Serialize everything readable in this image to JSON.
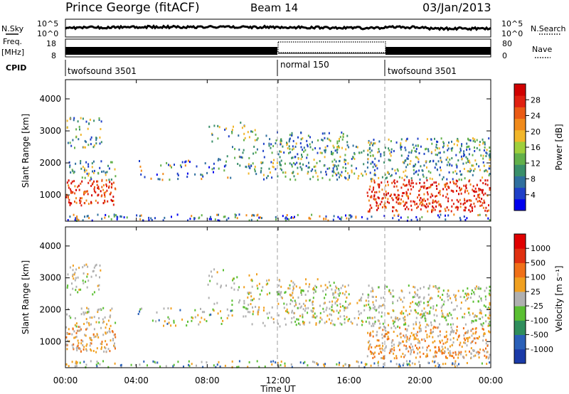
{
  "header": {
    "title": "Prince George (fitACF)",
    "beam": "Beam 14",
    "date": "03/Jan/2013"
  },
  "noise_panel": {
    "left_label": "N.Sky",
    "right_label": "N.Search",
    "left_ticks": [
      "10^5",
      "10^0"
    ],
    "right_ticks": [
      "10^5",
      "10^0"
    ]
  },
  "freq_panel": {
    "label_top": "Freq.",
    "label_unit": "[MHz]",
    "left_ticks": [
      "18",
      "8"
    ],
    "right_label": "Nave",
    "right_ticks": [
      "80",
      "0"
    ]
  },
  "cpid": {
    "label": "CPID",
    "segments": [
      {
        "text": "twofsound 3501",
        "start_hour": 0
      },
      {
        "text": "normal 150",
        "start_hour": 12
      },
      {
        "text": "twofsound 3501",
        "start_hour": 18
      }
    ]
  },
  "x_axis": {
    "label": "Time UT",
    "ticks": [
      "00:00",
      "04:00",
      "08:00",
      "12:00",
      "16:00",
      "20:00",
      "00:00"
    ],
    "range_hours": [
      0,
      24
    ]
  },
  "chart_data": [
    {
      "type": "heatmap",
      "title": "",
      "ylabel": "Slant Range [km]",
      "ylim": [
        180,
        4600
      ],
      "y_ticks": [
        "1000",
        "2000",
        "3000",
        "4000"
      ],
      "colorbar_label": "Power [dB]",
      "colorbar_ticks": [
        "28",
        "24",
        "20",
        "16",
        "12",
        "8",
        "4"
      ],
      "colorbar_colors": [
        "#0000ee",
        "#1f40c8",
        "#2f6f9e",
        "#3a8f6a",
        "#62b04a",
        "#9fcf3c",
        "#f1b62a",
        "#f08a1a",
        "#ea5a14",
        "#e02010",
        "#d00000"
      ]
    },
    {
      "type": "heatmap",
      "title": "",
      "ylabel": "Slant Range [km]",
      "ylim": [
        180,
        4600
      ],
      "y_ticks": [
        "1000",
        "2000",
        "3000",
        "4000"
      ],
      "colorbar_label": "Velocity [m s⁻¹]",
      "colorbar_ticks": [
        "1000",
        "500",
        "100",
        "25",
        "-25",
        "-100",
        "-500",
        "-1000"
      ],
      "colorbar_colors": [
        "#1a3aa8",
        "#2a60b8",
        "#2f8e5c",
        "#5abf32",
        "#b0b0b0",
        "#f0a020",
        "#f07018",
        "#e03010",
        "#e00000"
      ]
    }
  ]
}
